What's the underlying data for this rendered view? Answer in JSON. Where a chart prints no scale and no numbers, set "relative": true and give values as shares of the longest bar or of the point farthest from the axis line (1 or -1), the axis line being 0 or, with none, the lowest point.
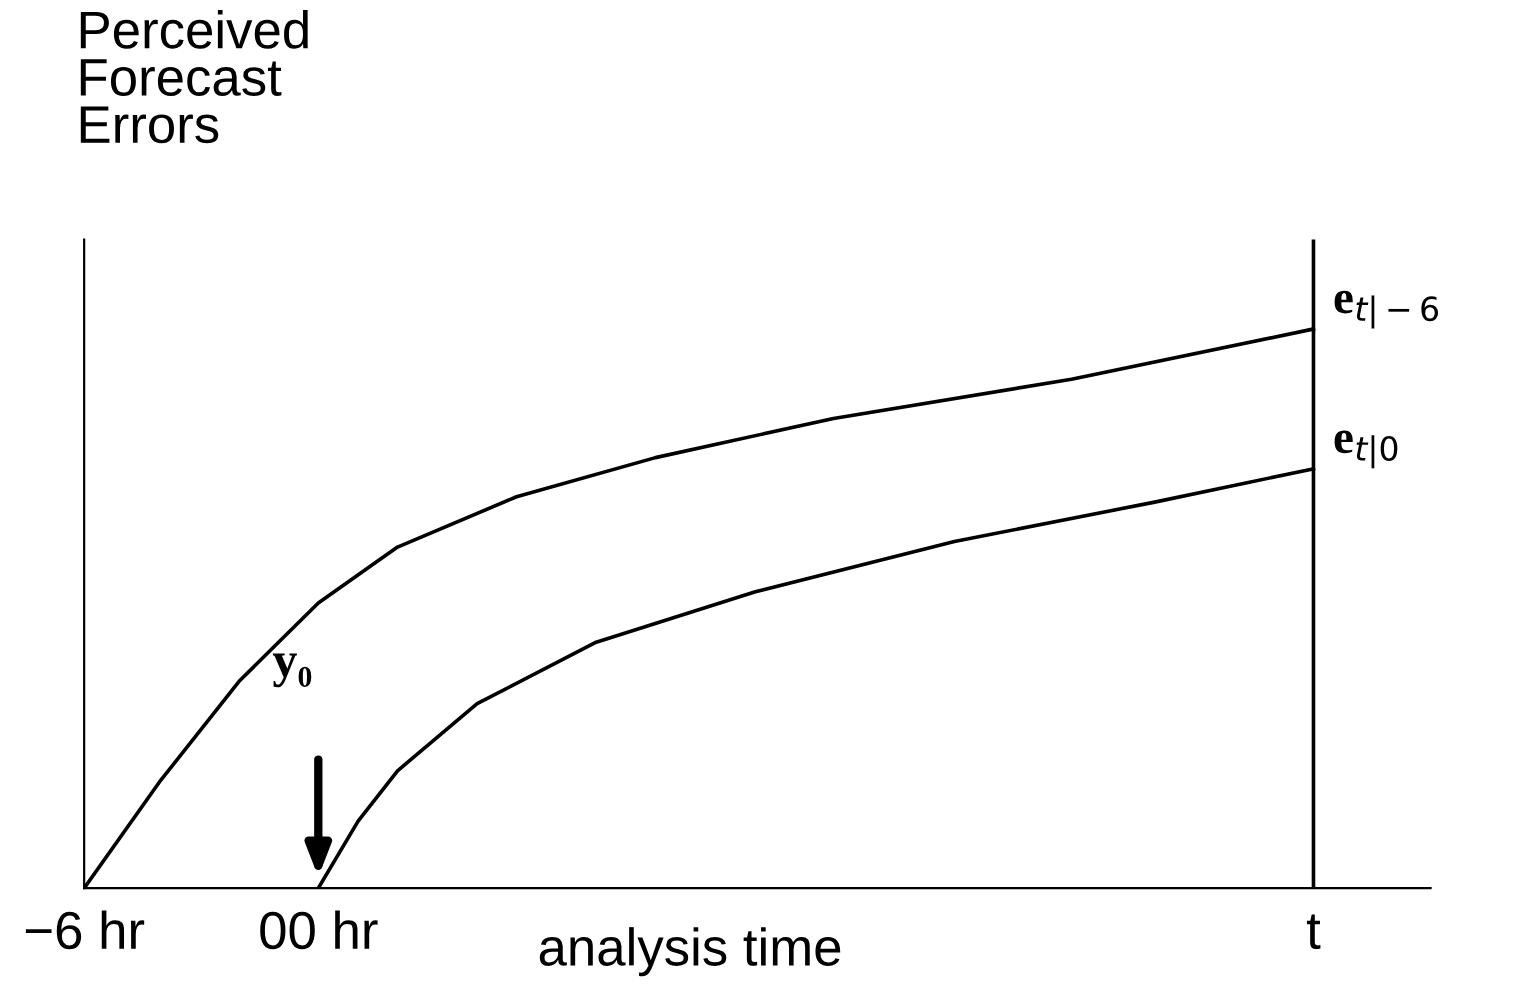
{
  "chart_data": {
    "type": "line",
    "relative": true,
    "xlabel": "analysis time",
    "ylabel": "Perceived\nForecast\nErrors",
    "tick_labels": "x",
    "legend": false,
    "grid": false,
    "marker": "none",
    "line_style": "solid",
    "xlim": [
      -6,
      28.5
    ],
    "xticks": [
      {
        "value": -6,
        "label": "−6 hr"
      },
      {
        "value": 0,
        "label": "00 hr"
      },
      {
        "value": 25.5,
        "label": "t"
      }
    ],
    "series": [
      {
        "name": "e$_{t|−6}$",
        "color": "#000000",
        "x": [
          -6,
          -4.07,
          -2.03,
          0,
          2.03,
          5.08,
          8.64,
          13.2,
          19.3,
          25.5
        ],
        "values": [
          0,
          0.19,
          0.37,
          0.51,
          0.61,
          0.7,
          0.77,
          0.84,
          0.91,
          1
        ]
      },
      {
        "name": "e$_{t|0}$",
        "color": "#000000",
        "x": [
          0,
          1.02,
          2.03,
          4.07,
          7.12,
          11.2,
          16.3,
          21.4,
          25.5
        ],
        "values": [
          0,
          0.12,
          0.21,
          0.33,
          0.44,
          0.53,
          0.62,
          0.69,
          0.75
        ]
      }
    ],
    "ref_lines": [
      {
        "axis": "x",
        "value": 25.5,
        "color": "#000000"
      }
    ],
    "annotations": [
      "y₀"
    ]
  }
}
